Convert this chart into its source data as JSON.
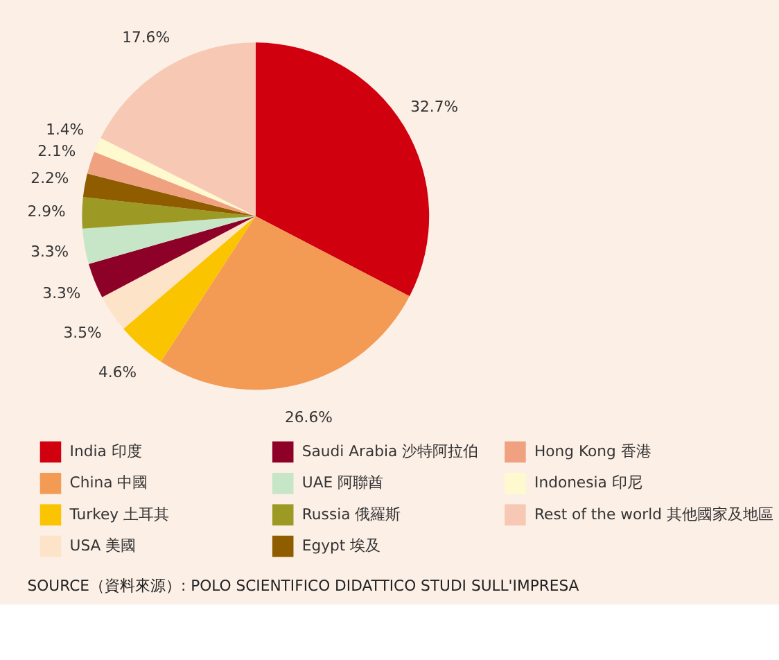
{
  "chart_data": {
    "type": "pie",
    "categories": [
      "India 印度",
      "China 中國",
      "Turkey 土耳其",
      "USA 美國",
      "Saudi Arabia 沙特阿拉伯",
      "UAE 阿聯酋",
      "Russia 俄羅斯",
      "Egypt 埃及",
      "Hong Kong 香港",
      "Indonesia 印尼",
      "Rest of the world 其他國家及地區"
    ],
    "values": [
      32.7,
      26.6,
      4.6,
      3.5,
      3.3,
      3.3,
      2.9,
      2.2,
      2.1,
      1.4,
      17.6
    ],
    "value_labels": [
      "32.7%",
      "26.6%",
      "4.6%",
      "3.5%",
      "3.3%",
      "3.3%",
      "2.9%",
      "2.2%",
      "2.1%",
      "1.4%",
      "17.6%"
    ],
    "colors": [
      "#d0000f",
      "#f39a55",
      "#fbc400",
      "#fde3c8",
      "#8d0027",
      "#c6e6c7",
      "#9c9a24",
      "#8f5d00",
      "#f0a180",
      "#fff9cf",
      "#f7c9b5"
    ],
    "legend": "bottom",
    "annotations": [
      "SOURCE（資料來源）: POLO SCIENTIFICO DIDATTICO STUDI SULL'IMPRESA"
    ]
  }
}
